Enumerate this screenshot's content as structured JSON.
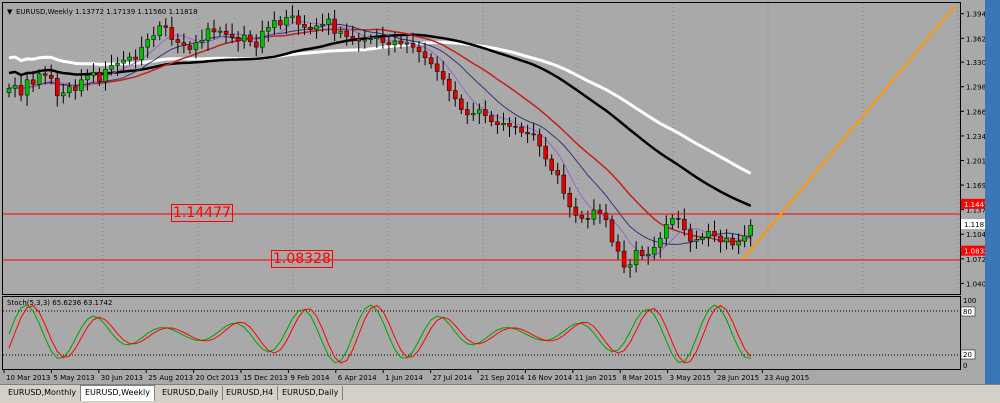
{
  "header": {
    "symbol_title": "EURUSD,Weekly  1.13772 1.17139 1.11560 1.11818",
    "menu_icon": "triangle-down-icon"
  },
  "price_axis": {
    "labels": [
      "1.39460",
      "1.36230",
      "1.33095",
      "1.29865",
      "1.26635",
      "1.23405",
      "1.20175",
      "1.16945",
      "1.13715",
      "1.10485",
      "1.07255",
      "1.04025"
    ],
    "current_price": "1.11818",
    "level_1": "1.14477",
    "level_2": "1.08328"
  },
  "stoch": {
    "title": "Stoch(5,3,3) 65.6236 63.1742",
    "axis_labels": [
      "100",
      "80",
      "20",
      "0"
    ]
  },
  "time_axis": {
    "labels": [
      "10 Mar 2013",
      "5 May 2013",
      "30 Jun 2013",
      "25 Aug 2013",
      "20 Oct 2013",
      "15 Dec 2013",
      "9 Feb 2014",
      "6 Apr 2014",
      "1 Jun 2014",
      "27 Jul 2014",
      "21 Sep 2014",
      "16 Nov 2014",
      "11 Jan 2015",
      "8 Mar 2015",
      "3 May 2015",
      "28 Jun 2015",
      "23 Aug 2015"
    ]
  },
  "tabs": [
    "EURUSD,Monthly",
    "EURUSD,Weekly",
    "EURUSD,Daily",
    "EURUSD,H4",
    "EURUSD,Daily"
  ],
  "active_tab": 1,
  "colors": {
    "background": "#a9a9a9",
    "bull": "#00c000",
    "bear": "#e00000",
    "sma_white": "#ffffff",
    "sma_black": "#000000",
    "ma_red": "#c02020",
    "ma_blue": "#333377",
    "ma_violet": "#9966cc",
    "trendline": "#ff9900",
    "hline": "#ff0000",
    "stoch_main": "#00a000",
    "stoch_signal": "#ff0000"
  },
  "chart_data": {
    "type": "candlestick",
    "title": "EURUSD,Weekly",
    "ylim": [
      1.025,
      1.41
    ],
    "hlines": [
      1.14477,
      1.08328
    ],
    "close_approx": [
      1.298,
      1.302,
      1.289,
      1.309,
      1.303,
      1.317,
      1.315,
      1.311,
      1.288,
      1.292,
      1.3,
      1.295,
      1.309,
      1.315,
      1.319,
      1.307,
      1.323,
      1.328,
      1.331,
      1.335,
      1.339,
      1.336,
      1.352,
      1.362,
      1.367,
      1.38,
      1.378,
      1.362,
      1.358,
      1.354,
      1.349,
      1.358,
      1.361,
      1.376,
      1.372,
      1.373,
      1.369,
      1.365,
      1.36,
      1.368,
      1.359,
      1.352,
      1.373,
      1.378,
      1.387,
      1.381,
      1.391,
      1.393,
      1.382,
      1.378,
      1.375,
      1.38,
      1.382,
      1.389,
      1.37,
      1.373,
      1.366,
      1.363,
      1.36,
      1.362,
      1.363,
      1.365,
      1.358,
      1.355,
      1.36,
      1.356,
      1.357,
      1.352,
      1.346,
      1.338,
      1.33,
      1.32,
      1.31,
      1.295,
      1.284,
      1.27,
      1.263,
      1.265,
      1.27,
      1.262,
      1.254,
      1.25,
      1.252,
      1.248,
      1.247,
      1.24,
      1.238,
      1.237,
      1.222,
      1.205,
      1.19,
      1.184,
      1.16,
      1.142,
      1.131,
      1.127,
      1.126,
      1.138,
      1.134,
      1.125,
      1.096,
      1.084,
      1.063,
      1.066,
      1.085,
      1.078,
      1.08,
      1.089,
      1.101,
      1.119,
      1.127,
      1.126,
      1.112,
      1.097,
      1.099,
      1.102,
      1.11,
      1.104,
      1.096,
      1.101,
      1.092,
      1.097,
      1.104,
      1.118
    ]
  }
}
